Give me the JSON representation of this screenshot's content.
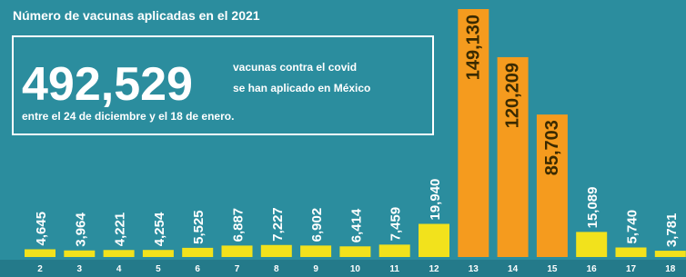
{
  "chart_data": {
    "type": "bar",
    "title": "Número de vacunas aplicadas en el 2021",
    "headline": "492,529",
    "description_lines": [
      "vacunas contra el covid",
      "se han aplicado en México",
      "entre el 24 de diciembre y el 18 de enero."
    ],
    "categories": [
      "2",
      "3",
      "4",
      "5",
      "6",
      "7",
      "8",
      "9",
      "10",
      "11",
      "12",
      "13",
      "14",
      "15",
      "16",
      "17",
      "18"
    ],
    "values": [
      4645,
      3964,
      4221,
      4254,
      5525,
      6887,
      7227,
      6902,
      6414,
      7459,
      19940,
      149130,
      120209,
      85703,
      15089,
      5740,
      3781
    ],
    "value_labels": [
      "4,645",
      "3,964",
      "4,221",
      "4,254",
      "5,525",
      "6,887",
      "7,227",
      "6,902",
      "6,414",
      "7,459",
      "19,940",
      "149,130",
      "120,209",
      "85,703",
      "15,089",
      "5,740",
      "3,781"
    ],
    "colors": [
      "#f2e21c",
      "#f2e21c",
      "#f2e21c",
      "#f2e21c",
      "#f2e21c",
      "#f2e21c",
      "#f2e21c",
      "#f2e21c",
      "#f2e21c",
      "#f2e21c",
      "#f2e21c",
      "#f59b1e",
      "#f59b1e",
      "#f59b1e",
      "#f2e21c",
      "#f2e21c",
      "#f2e21c"
    ]
  }
}
